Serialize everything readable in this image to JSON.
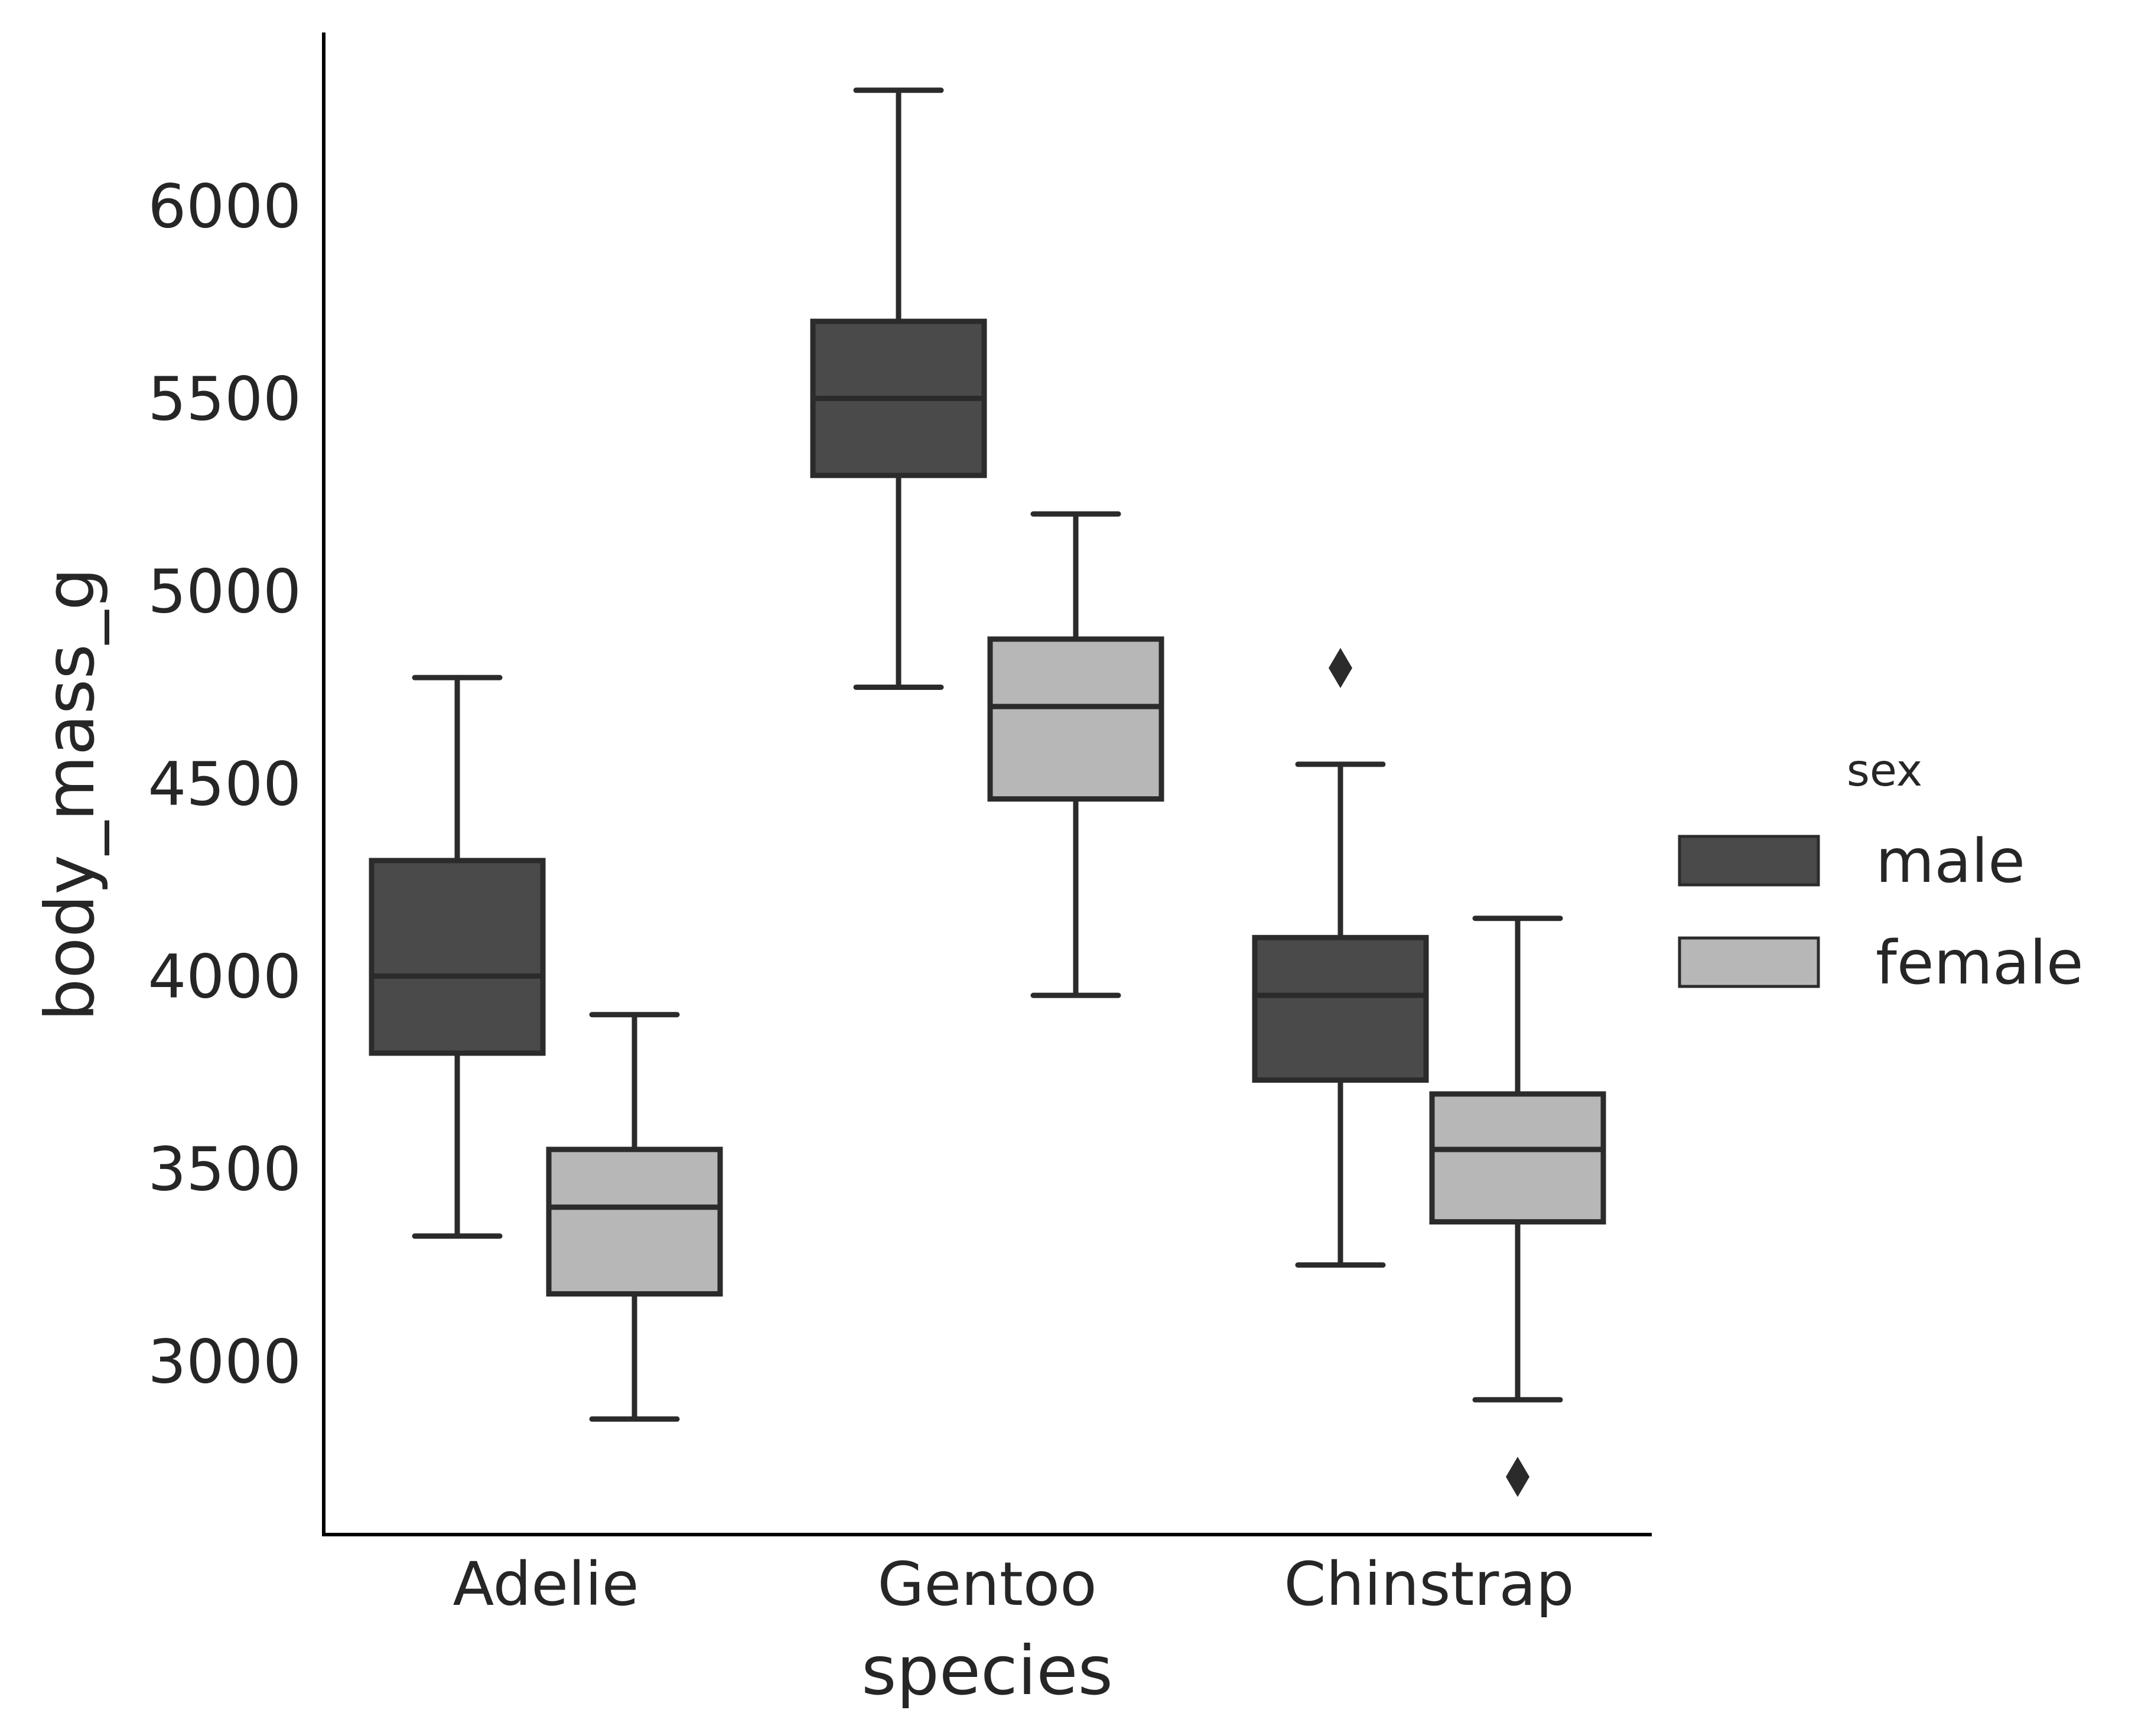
{
  "chart_data": {
    "type": "box",
    "xlabel": "species",
    "ylabel": "body_mass_g",
    "ylim": [
      2550,
      6450
    ],
    "yticks": [
      3000,
      3500,
      4000,
      4500,
      5000,
      5500,
      6000
    ],
    "categories": [
      "Adelie",
      "Gentoo",
      "Chinstrap"
    ],
    "grid": false,
    "legend": {
      "title": "sex",
      "placement": "right",
      "entries": [
        {
          "label": "male",
          "color": "#4a4a4a"
        },
        {
          "label": "female",
          "color": "#b7b7b7"
        }
      ]
    },
    "series": [
      {
        "name": "male",
        "color": "#4a4a4a",
        "boxes": [
          {
            "category": "Adelie",
            "whisker_low": 3325,
            "q1": 3800,
            "median": 4000,
            "q3": 4300,
            "whisker_high": 4775,
            "outliers": []
          },
          {
            "category": "Gentoo",
            "whisker_low": 4750,
            "q1": 5300,
            "median": 5500,
            "q3": 5700,
            "whisker_high": 6300,
            "outliers": []
          },
          {
            "category": "Chinstrap",
            "whisker_low": 3250,
            "q1": 3730,
            "median": 3950,
            "q3": 4100,
            "whisker_high": 4550,
            "outliers": [
              4800
            ]
          }
        ]
      },
      {
        "name": "female",
        "color": "#b7b7b7",
        "boxes": [
          {
            "category": "Adelie",
            "whisker_low": 2850,
            "q1": 3175,
            "median": 3400,
            "q3": 3550,
            "whisker_high": 3900,
            "outliers": []
          },
          {
            "category": "Gentoo",
            "whisker_low": 3950,
            "q1": 4460,
            "median": 4700,
            "q3": 4875,
            "whisker_high": 5200,
            "outliers": []
          },
          {
            "category": "Chinstrap",
            "whisker_low": 2900,
            "q1": 3362,
            "median": 3550,
            "q3": 3694,
            "whisker_high": 4150,
            "outliers": [
              2700
            ]
          }
        ]
      }
    ]
  }
}
